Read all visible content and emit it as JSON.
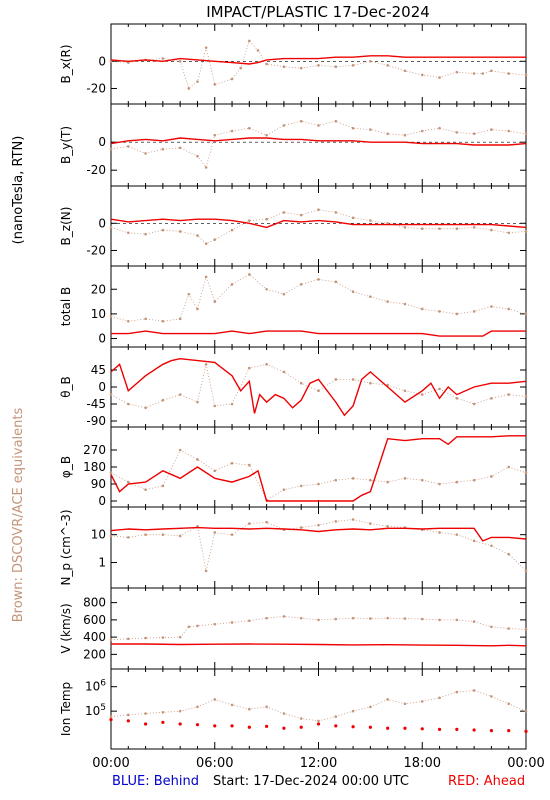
{
  "title": "IMPACT/PLASTIC   17-Dec-2024",
  "left_label_black": "(nanoTesla, RTN)",
  "left_label_brown": "Brown: DSCOVR/ACE equivalents",
  "footer": {
    "blue": "BLUE: Behind",
    "start": "Start: 17-Dec-2024 00:00 UTC",
    "red": "RED: Ahead"
  },
  "colors": {
    "ahead": "#ee0000",
    "dscovr": "#c49478",
    "behind": "#0000cc",
    "axis": "#000000"
  },
  "chart_data": [
    {
      "type": "line",
      "id": "bx",
      "ylabel": "B_x(R)",
      "ylim": [
        -27,
        23
      ],
      "ticks": [
        -20,
        0
      ],
      "zero_line": true,
      "series": [
        {
          "color": "red",
          "x": [
            0,
            1,
            2,
            3,
            4,
            5,
            6,
            7,
            8,
            8.5,
            9,
            10,
            11,
            12,
            13,
            14,
            15,
            16,
            17,
            18,
            19,
            20,
            21,
            22,
            23,
            24
          ],
          "y": [
            1,
            0,
            1,
            0,
            2,
            1,
            0,
            -1,
            -2,
            -1,
            1,
            2,
            2,
            2,
            3,
            3,
            4,
            4,
            3,
            3,
            3,
            3,
            3,
            3,
            3,
            3
          ]
        },
        {
          "color": "brown",
          "x": [
            0,
            1,
            2,
            3,
            4,
            4.5,
            5,
            5.5,
            6,
            7,
            7.5,
            8,
            8.5,
            9,
            10,
            11,
            12,
            13,
            14,
            15,
            16,
            17,
            18,
            19,
            20,
            21,
            21.5,
            22,
            23,
            24
          ],
          "y": [
            0,
            -1,
            1,
            2,
            0,
            -20,
            -15,
            10,
            -17,
            -13,
            -5,
            15,
            8,
            -2,
            -4,
            -5,
            -3,
            -4,
            -3,
            0,
            -3,
            -7,
            -10,
            -12,
            -8,
            -9,
            -9,
            -7,
            -9,
            -10
          ]
        }
      ]
    },
    {
      "type": "line",
      "id": "by",
      "ylabel": "B_y(T)",
      "ylim": [
        -27,
        23
      ],
      "ticks": [
        -20,
        0
      ],
      "zero_line": true,
      "series": [
        {
          "color": "red",
          "x": [
            0,
            1,
            2,
            3,
            4,
            5,
            6,
            7,
            8,
            9,
            10,
            11,
            12,
            13,
            14,
            15,
            16,
            17,
            18,
            19,
            20,
            21,
            22,
            23,
            24
          ],
          "y": [
            -1,
            1,
            2,
            1,
            3,
            2,
            1,
            2,
            3,
            3,
            2,
            2,
            1,
            1,
            1,
            0,
            0,
            0,
            -1,
            -1,
            -1,
            -2,
            -2,
            -2,
            -1
          ]
        },
        {
          "color": "brown",
          "x": [
            0,
            1,
            2,
            3,
            4,
            5,
            5.5,
            6,
            7,
            8,
            9,
            10,
            11,
            12,
            13,
            14,
            15,
            16,
            17,
            18,
            19,
            20,
            21,
            22,
            23,
            24
          ],
          "y": [
            -5,
            -3,
            -8,
            -5,
            -4,
            -10,
            -18,
            5,
            8,
            10,
            5,
            12,
            15,
            12,
            15,
            10,
            9,
            6,
            5,
            8,
            10,
            7,
            6,
            9,
            8,
            6
          ]
        }
      ]
    },
    {
      "type": "line",
      "id": "bz",
      "ylabel": "B_z(N)",
      "ylim": [
        -27,
        23
      ],
      "ticks": [
        -20,
        0
      ],
      "zero_line": true,
      "series": [
        {
          "color": "red",
          "x": [
            0,
            1,
            2,
            3,
            4,
            5,
            6,
            7,
            8,
            9,
            10,
            11,
            12,
            13,
            14,
            15,
            16,
            17,
            18,
            19,
            20,
            21,
            22,
            23,
            24
          ],
          "y": [
            3,
            1,
            2,
            3,
            2,
            3,
            3,
            2,
            0,
            -3,
            2,
            1,
            2,
            1,
            -1,
            -1,
            -1,
            -1,
            -1,
            -1,
            -1,
            -1,
            -1,
            -2,
            -3
          ]
        },
        {
          "color": "brown",
          "x": [
            0,
            1,
            2,
            3,
            4,
            5,
            5.5,
            6,
            7,
            8,
            9,
            10,
            11,
            12,
            13,
            14,
            15,
            16,
            17,
            18,
            19,
            20,
            21,
            22,
            23,
            24
          ],
          "y": [
            -3,
            -7,
            -8,
            -5,
            -6,
            -9,
            -15,
            -12,
            -5,
            2,
            3,
            8,
            6,
            10,
            8,
            4,
            2,
            0,
            -3,
            -4,
            -4,
            -4,
            -3,
            -5,
            -7,
            -6
          ]
        }
      ]
    },
    {
      "type": "line",
      "id": "btot",
      "ylabel": "total B",
      "ylim": [
        -1,
        27
      ],
      "ticks": [
        0,
        10,
        20
      ],
      "zero_line": false,
      "series": [
        {
          "color": "red",
          "x": [
            0,
            1,
            2,
            3,
            4,
            5,
            6,
            7,
            8,
            9,
            10,
            11,
            12,
            13,
            14,
            15,
            16,
            17,
            18,
            19,
            20,
            21,
            21.5,
            22,
            23,
            24
          ],
          "y": [
            2,
            2,
            3,
            2,
            2,
            2,
            2,
            3,
            2,
            3,
            3,
            3,
            2,
            2,
            2,
            2,
            2,
            2,
            2,
            1,
            1,
            1,
            1,
            3,
            3,
            3
          ]
        },
        {
          "color": "brown",
          "x": [
            0,
            1,
            2,
            3,
            4,
            4.5,
            5,
            5.5,
            6,
            7,
            8,
            9,
            10,
            11,
            12,
            13,
            14,
            15,
            16,
            17,
            18,
            19,
            20,
            21,
            22,
            23,
            24
          ],
          "y": [
            9,
            7,
            8,
            7,
            8,
            18,
            12,
            25,
            15,
            22,
            26,
            20,
            18,
            22,
            24,
            23,
            19,
            17,
            15,
            14,
            12,
            11,
            10,
            11,
            13,
            12,
            10
          ]
        }
      ]
    },
    {
      "type": "line",
      "id": "theta",
      "ylabel": "θ_B",
      "ylim": [
        -90,
        90
      ],
      "ticks": [
        -90,
        -45,
        0,
        45
      ],
      "zero_line": false,
      "series": [
        {
          "color": "red",
          "x": [
            0,
            0.5,
            1,
            2,
            3,
            3.5,
            4,
            5,
            6,
            7,
            7.5,
            8,
            8.3,
            8.6,
            9,
            9.5,
            10,
            10.5,
            11,
            11.5,
            12,
            13,
            13.5,
            14,
            14.5,
            15,
            16,
            17,
            18,
            18.5,
            19,
            19.5,
            20,
            21,
            22,
            23,
            24
          ],
          "y": [
            40,
            60,
            -10,
            30,
            60,
            70,
            75,
            70,
            65,
            30,
            -10,
            15,
            -70,
            -20,
            -40,
            -20,
            -30,
            -55,
            -35,
            10,
            20,
            -40,
            -75,
            -50,
            20,
            40,
            0,
            -40,
            -10,
            10,
            -30,
            0,
            -20,
            0,
            10,
            10,
            15
          ]
        },
        {
          "color": "brown",
          "x": [
            0,
            1,
            2,
            3,
            4,
            5,
            5.5,
            6,
            7,
            8,
            9,
            10,
            11,
            12,
            13,
            14,
            15,
            16,
            17,
            18,
            19,
            20,
            21,
            22,
            23,
            24
          ],
          "y": [
            -20,
            -45,
            -55,
            -35,
            -20,
            -40,
            60,
            -50,
            -45,
            50,
            60,
            40,
            10,
            -10,
            20,
            20,
            10,
            5,
            -10,
            -20,
            -5,
            -30,
            -45,
            -30,
            -20,
            -25
          ]
        }
      ]
    },
    {
      "type": "line",
      "id": "phi",
      "ylabel": "φ_B",
      "ylim": [
        0,
        360
      ],
      "ticks": [
        0,
        90,
        180,
        270
      ],
      "zero_line": false,
      "series": [
        {
          "color": "red",
          "x": [
            0,
            0.5,
            1,
            2,
            3,
            4,
            5,
            6,
            7,
            8,
            8.5,
            9,
            9.3,
            10,
            11,
            12,
            13,
            14,
            14.5,
            15,
            16,
            17,
            18,
            19,
            19.5,
            20,
            21,
            22,
            23,
            24
          ],
          "y": [
            140,
            50,
            90,
            100,
            160,
            120,
            180,
            120,
            100,
            130,
            160,
            0,
            0,
            0,
            0,
            0,
            0,
            0,
            30,
            50,
            330,
            320,
            330,
            330,
            300,
            340,
            340,
            340,
            345,
            345
          ]
        },
        {
          "color": "brown",
          "x": [
            0,
            1,
            2,
            3,
            4,
            5,
            6,
            7,
            8,
            9,
            10,
            11,
            12,
            13,
            14,
            15,
            16,
            17,
            18,
            19,
            20,
            21,
            22,
            23,
            24
          ],
          "y": [
            150,
            100,
            60,
            80,
            270,
            220,
            160,
            200,
            190,
            5,
            60,
            80,
            90,
            110,
            120,
            110,
            100,
            120,
            110,
            90,
            100,
            110,
            130,
            180,
            150
          ]
        }
      ]
    },
    {
      "type": "line",
      "id": "np",
      "ylabel": "N_p (cm^-3)",
      "log": true,
      "ylim": [
        0.2,
        60
      ],
      "ticks": [
        1,
        10
      ],
      "zero_line": false,
      "series": [
        {
          "color": "red",
          "x": [
            0,
            1,
            2,
            3,
            4,
            5,
            6,
            7,
            8,
            9,
            10,
            11,
            12,
            13,
            14,
            15,
            16,
            17,
            18,
            19,
            20,
            21,
            21.5,
            22,
            23,
            24
          ],
          "y": [
            14,
            16,
            15,
            16,
            17,
            18,
            17,
            17,
            16,
            17,
            16,
            15,
            13,
            15,
            16,
            15,
            17,
            17,
            16,
            17,
            17,
            17,
            6,
            8,
            8,
            7
          ]
        },
        {
          "color": "brown",
          "x": [
            0,
            1,
            2,
            3,
            4,
            5,
            5.5,
            6,
            7,
            8,
            9,
            10,
            11,
            12,
            13,
            14,
            15,
            16,
            17,
            18,
            19,
            20,
            21,
            22,
            23,
            24
          ],
          "y": [
            9,
            8,
            10,
            10,
            9,
            20,
            0.5,
            12,
            10,
            25,
            28,
            15,
            18,
            22,
            30,
            35,
            25,
            20,
            18,
            15,
            12,
            10,
            6,
            4,
            2,
            0.5
          ]
        }
      ]
    },
    {
      "type": "line",
      "id": "v",
      "ylabel": "V (km/s)",
      "ylim": [
        100,
        900
      ],
      "ticks": [
        200,
        400,
        600,
        800
      ],
      "zero_line": false,
      "series": [
        {
          "color": "red",
          "x": [
            0,
            2,
            4,
            6,
            8,
            10,
            12,
            14,
            16,
            18,
            20,
            22,
            23,
            24
          ],
          "y": [
            320,
            320,
            315,
            318,
            320,
            318,
            315,
            310,
            312,
            308,
            305,
            300,
            305,
            300
          ]
        },
        {
          "color": "brown",
          "x": [
            0,
            1,
            2,
            3,
            4,
            4.5,
            5,
            6,
            7,
            8,
            9,
            10,
            11,
            12,
            13,
            14,
            15,
            16,
            17,
            18,
            19,
            20,
            21,
            22,
            23,
            24
          ],
          "y": [
            370,
            380,
            390,
            395,
            400,
            520,
            530,
            550,
            570,
            590,
            620,
            640,
            620,
            600,
            610,
            620,
            615,
            620,
            615,
            610,
            600,
            600,
            580,
            520,
            500,
            490
          ]
        }
      ]
    },
    {
      "type": "scatter",
      "id": "temp",
      "ylabel": "Ion Temp",
      "log": true,
      "ylim": [
        5000,
        3000000
      ],
      "ticks_labels": [
        "10^5",
        "10^6"
      ],
      "ticks": [
        100000,
        1000000
      ],
      "zero_line": false,
      "series": [
        {
          "color": "red",
          "x": [
            0,
            1,
            2,
            3,
            4,
            5,
            6,
            7,
            8,
            9,
            10,
            11,
            12,
            13,
            14,
            15,
            16,
            17,
            18,
            19,
            20,
            21,
            22,
            23,
            24
          ],
          "y": [
            45000,
            40000,
            30000,
            35000,
            30000,
            28000,
            25000,
            25000,
            22000,
            24000,
            20000,
            22000,
            30000,
            25000,
            23000,
            22000,
            20000,
            20000,
            19000,
            18000,
            18000,
            17000,
            16000,
            16000,
            15000
          ]
        },
        {
          "color": "brown",
          "x": [
            0,
            1,
            2,
            3,
            4,
            5,
            6,
            7,
            8,
            9,
            10,
            11,
            12,
            13,
            14,
            15,
            16,
            17,
            18,
            19,
            20,
            21,
            22,
            23,
            24
          ],
          "y": [
            60000,
            70000,
            80000,
            90000,
            100000,
            150000,
            300000,
            180000,
            120000,
            150000,
            80000,
            50000,
            40000,
            60000,
            100000,
            150000,
            300000,
            200000,
            250000,
            350000,
            600000,
            700000,
            400000,
            200000,
            100000
          ]
        }
      ]
    }
  ],
  "xaxis": {
    "ticks": [
      "00:00",
      "06:00",
      "12:00",
      "18:00",
      "00:00"
    ],
    "range_hours": [
      0,
      24
    ]
  }
}
